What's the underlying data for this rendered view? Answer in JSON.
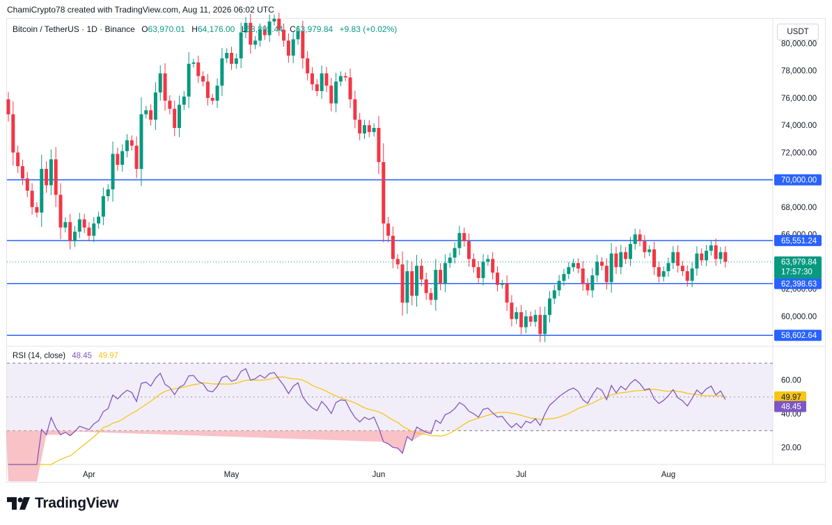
{
  "header": {
    "attribution": "ChamiCrypto78 created with TradingView.com, Aug 11, 2026 06:02 UTC"
  },
  "legend": {
    "symbol": "Bitcoin / TetherUS · 1D · Binance",
    "open_label": "O",
    "open": "63,970.01",
    "high_label": "H",
    "high": "64,176.00",
    "low_label": "L",
    "low": "63,895.44",
    "close_label": "C",
    "close": "63,979.84",
    "change": "+9.83 (+0.02%)"
  },
  "currency_button": "USDT",
  "rsi_legend": {
    "label": "RSI (14, close)",
    "rsi_value": "48.45",
    "ma_value": "49.97"
  },
  "colors": {
    "up": "#089981",
    "down": "#f23645",
    "level_line": "#2962ff",
    "rsi_line": "#7e57c2",
    "rsi_ma": "#f5c518",
    "oversold_fill": "#f7b3b8",
    "rsi_band": "#ede7f6"
  },
  "footer": {
    "brand": "TradingView",
    "logo_icon": "tradingview-logo-icon"
  },
  "chart_data": {
    "type": "candlestick",
    "price_axis": {
      "ylim": [
        57800,
        81800
      ],
      "ticks": [
        "80,000.00",
        "78,000.00",
        "76,000.00",
        "74,000.00",
        "72,000.00",
        "68,000.00",
        "66,000.00",
        "62,000.00",
        "60,000.00"
      ],
      "tick_values": [
        80000,
        78000,
        76000,
        74000,
        72000,
        68000,
        66000,
        62000,
        60000
      ]
    },
    "levels": [
      {
        "value": 70000,
        "label": "70,000.00"
      },
      {
        "value": 65551.24,
        "label": "65,551.24"
      },
      {
        "value": 62398.63,
        "label": "62,398.63"
      },
      {
        "value": 58602.64,
        "label": "58,602.64"
      }
    ],
    "last_price": {
      "value": 63979.84,
      "label": "63,979.84",
      "countdown": "17:57:30"
    },
    "x_axis": {
      "labels": [
        {
          "label": "Apr",
          "index": 17
        },
        {
          "label": "May",
          "index": 47
        },
        {
          "label": "Jun",
          "index": 78
        },
        {
          "label": "Jul",
          "index": 108
        },
        {
          "label": "Aug",
          "index": 139
        }
      ]
    },
    "candles": [
      [
        75900,
        74800
      ],
      [
        74800,
        72000
      ],
      [
        72000,
        71000
      ],
      [
        71000,
        70100
      ],
      [
        70100,
        69200
      ],
      [
        69200,
        68000
      ],
      [
        68000,
        67600
      ],
      [
        67600,
        70800
      ],
      [
        70800,
        69600
      ],
      [
        69600,
        71500
      ],
      [
        71500,
        68900
      ],
      [
        68900,
        66500
      ],
      [
        66500,
        66900
      ],
      [
        66900,
        65500
      ],
      [
        65500,
        66200
      ],
      [
        66200,
        67100
      ],
      [
        67100,
        66500
      ],
      [
        66500,
        65900
      ],
      [
        65900,
        66800
      ],
      [
        66800,
        67300
      ],
      [
        67300,
        68800
      ],
      [
        68800,
        69300
      ],
      [
        69300,
        71900
      ],
      [
        71900,
        71100
      ],
      [
        71100,
        72100
      ],
      [
        72100,
        72900
      ],
      [
        72900,
        72500
      ],
      [
        72500,
        70800
      ],
      [
        70800,
        74800
      ],
      [
        74800,
        75100
      ],
      [
        75100,
        74400
      ],
      [
        74400,
        76400
      ],
      [
        76400,
        77800
      ],
      [
        77800,
        75800
      ],
      [
        75800,
        75200
      ],
      [
        75200,
        73800
      ],
      [
        73800,
        75500
      ],
      [
        75500,
        76100
      ],
      [
        76100,
        78500
      ],
      [
        78500,
        78600
      ],
      [
        78600,
        77600
      ],
      [
        77600,
        77200
      ],
      [
        77200,
        76000
      ],
      [
        76000,
        75800
      ],
      [
        75800,
        76900
      ],
      [
        76900,
        78900
      ],
      [
        78900,
        79300
      ],
      [
        79300,
        78500
      ],
      [
        78500,
        78900
      ],
      [
        78900,
        80800
      ],
      [
        80800,
        81500
      ],
      [
        81500,
        79900
      ],
      [
        79900,
        80200
      ],
      [
        80200,
        81000
      ],
      [
        81000,
        80600
      ],
      [
        80600,
        81600
      ],
      [
        81600,
        81800
      ],
      [
        81800,
        81000
      ],
      [
        81000,
        80200
      ],
      [
        80200,
        79100
      ],
      [
        79100,
        80300
      ],
      [
        80300,
        80900
      ],
      [
        80900,
        78900
      ],
      [
        78900,
        77800
      ],
      [
        77800,
        77000
      ],
      [
        77000,
        76500
      ],
      [
        76500,
        77800
      ],
      [
        77800,
        76900
      ],
      [
        76900,
        75600
      ],
      [
        75600,
        77200
      ],
      [
        77200,
        77600
      ],
      [
        77600,
        77500
      ],
      [
        77500,
        75900
      ],
      [
        75900,
        74400
      ],
      [
        74400,
        73400
      ],
      [
        73400,
        74000
      ],
      [
        74000,
        73500
      ],
      [
        73500,
        73800
      ],
      [
        73800,
        71300
      ],
      [
        71300,
        66800
      ],
      [
        66800,
        65900
      ],
      [
        65900,
        64200
      ],
      [
        64200,
        63800
      ],
      [
        63800,
        61000
      ],
      [
        61000,
        63300
      ],
      [
        63300,
        61500
      ],
      [
        61500,
        63700
      ],
      [
        63700,
        62700
      ],
      [
        62700,
        61700
      ],
      [
        61700,
        61200
      ],
      [
        61200,
        63400
      ],
      [
        63400,
        62400
      ],
      [
        62400,
        63900
      ],
      [
        63900,
        64300
      ],
      [
        64300,
        65000
      ],
      [
        65000,
        66100
      ],
      [
        66100,
        65500
      ],
      [
        65500,
        64200
      ],
      [
        64200,
        63600
      ],
      [
        63600,
        62800
      ],
      [
        62800,
        64000
      ],
      [
        64000,
        64200
      ],
      [
        64200,
        63200
      ],
      [
        63200,
        62300
      ],
      [
        62300,
        62400
      ],
      [
        62400,
        61000
      ],
      [
        61000,
        59800
      ],
      [
        59800,
        60300
      ],
      [
        60300,
        59200
      ],
      [
        59200,
        60000
      ],
      [
        60000,
        59600
      ],
      [
        59600,
        60100
      ],
      [
        60100,
        58700
      ],
      [
        58700,
        60100
      ],
      [
        60100,
        61300
      ],
      [
        61300,
        61900
      ],
      [
        61900,
        62600
      ],
      [
        62600,
        63100
      ],
      [
        63100,
        63600
      ],
      [
        63600,
        63900
      ],
      [
        63900,
        63500
      ],
      [
        63500,
        62400
      ],
      [
        62400,
        61900
      ],
      [
        61900,
        63000
      ],
      [
        63000,
        64000
      ],
      [
        64000,
        63700
      ],
      [
        63700,
        62500
      ],
      [
        62500,
        64600
      ],
      [
        64600,
        63600
      ],
      [
        63600,
        64700
      ],
      [
        64700,
        64200
      ],
      [
        64200,
        65300
      ],
      [
        65300,
        66000
      ],
      [
        66000,
        65500
      ],
      [
        65500,
        64700
      ],
      [
        64700,
        64900
      ],
      [
        64900,
        63600
      ],
      [
        63600,
        62900
      ],
      [
        62900,
        63300
      ],
      [
        63300,
        63900
      ],
      [
        63900,
        64700
      ],
      [
        64700,
        63700
      ],
      [
        63700,
        63300
      ],
      [
        63300,
        62600
      ],
      [
        62600,
        63500
      ],
      [
        63500,
        64600
      ],
      [
        64600,
        64100
      ],
      [
        64100,
        64800
      ],
      [
        64800,
        65200
      ],
      [
        65200,
        64200
      ],
      [
        64200,
        64700
      ],
      [
        64700,
        64000
      ]
    ],
    "rsi": {
      "label": "RSI (14, close)",
      "ylim": [
        10,
        80
      ],
      "ticks": [
        "60.00",
        "40.00",
        "20.00"
      ],
      "tick_values": [
        60,
        40,
        20
      ],
      "upper_band": 70,
      "middle_band": 50,
      "lower_band": 30,
      "rsi_value": 48.45,
      "ma_value": 49.97
    }
  }
}
